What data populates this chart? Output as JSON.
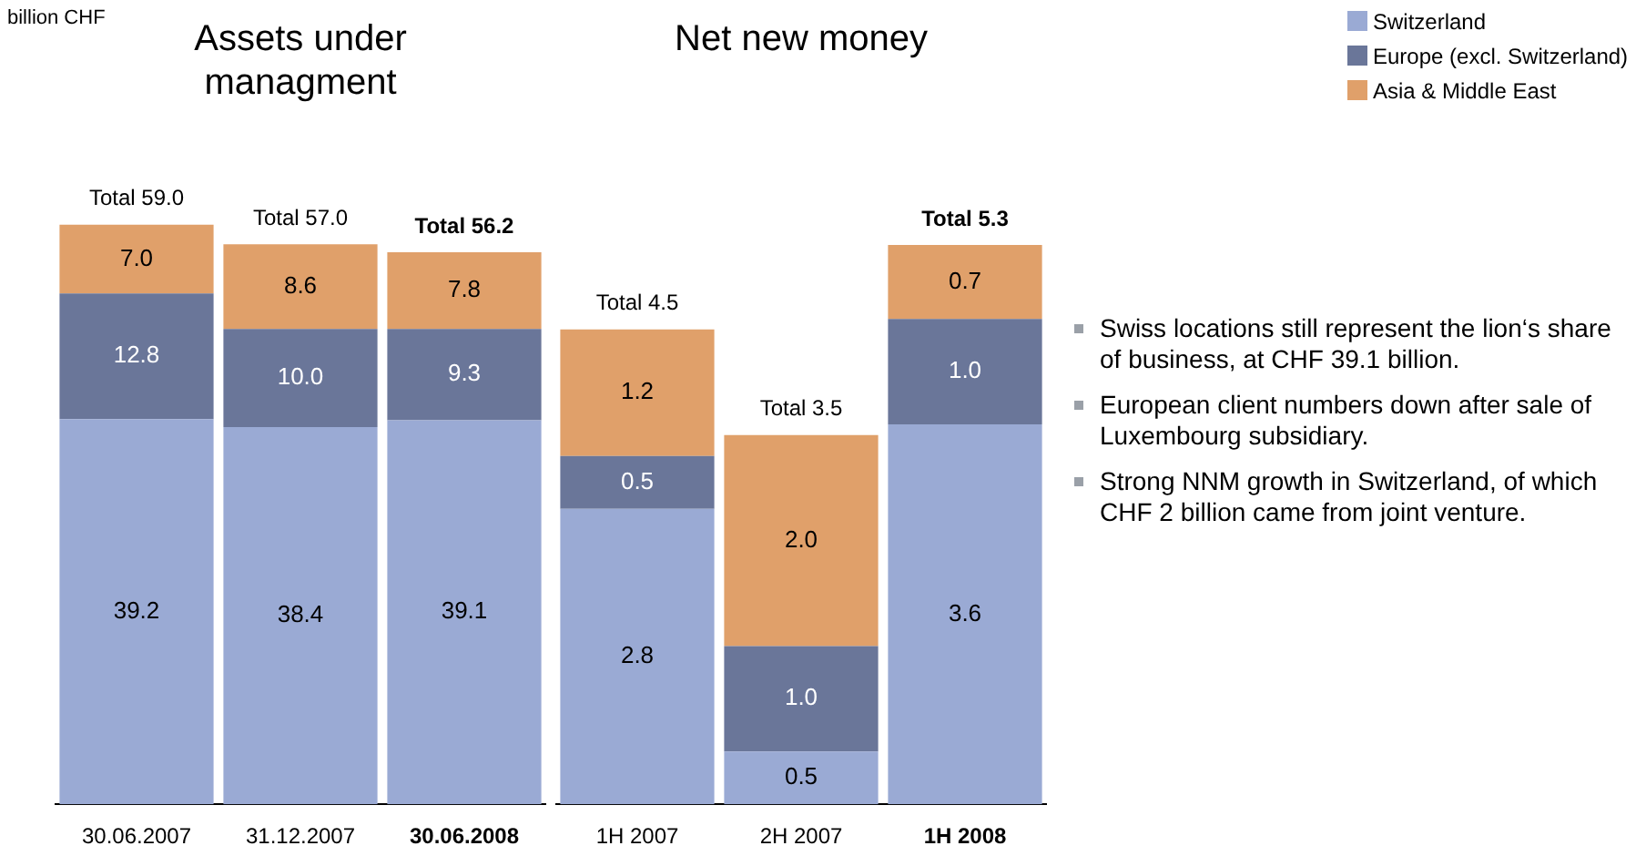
{
  "chart_data": [
    {
      "type": "bar",
      "title": "Assets under managment",
      "annotations": [
        "billion CHF"
      ],
      "stacked": true,
      "legend": "top right",
      "categories": [
        "30.06.2007",
        "31.12.2007",
        "30.06.2008"
      ],
      "series": [
        {
          "name": "Switzerland",
          "color": "#9aaad4",
          "values": [
            39.2,
            38.4,
            39.1
          ],
          "value_labels": [
            "39.2",
            "38.4",
            "39.1"
          ]
        },
        {
          "name": "Europe (excl. Switzerland)",
          "color": "#6a7699",
          "values": [
            12.8,
            10.0,
            9.3
          ],
          "value_labels": [
            "12.8",
            "10.0",
            "9.3"
          ]
        },
        {
          "name": "Asia & Middle East",
          "color": "#e0a06a",
          "values": [
            7.0,
            8.6,
            7.8
          ],
          "value_labels": [
            "7.0",
            "8.6",
            "7.8"
          ]
        }
      ],
      "totals": [
        "Total 59.0",
        "Total 57.0",
        "Total 56.2"
      ]
    },
    {
      "type": "bar",
      "title": "Net new money",
      "stacked": true,
      "categories": [
        "1H 2007",
        "2H 2007",
        "1H 2008"
      ],
      "series": [
        {
          "color": "#9aaad4",
          "values": [
            2.8,
            0.5,
            3.6
          ],
          "value_labels": [
            "2.8",
            "0.5",
            "3.6"
          ]
        },
        {
          "color": "#6a7699",
          "values": [
            0.5,
            1.0,
            1.0
          ],
          "value_labels": [
            "0.5",
            "1.0",
            "1.0"
          ]
        },
        {
          "color": "#e0a06a",
          "values": [
            1.2,
            2.0,
            0.7
          ],
          "value_labels": [
            "1.2",
            "2.0",
            "0.7"
          ]
        }
      ],
      "totals": [
        "Total 4.5",
        "Total 3.5",
        "Total 5.3"
      ]
    },
    {
      "type": "other",
      "annotations": [
        "Swiss locations still represent the lion‘s share of business, at CHF 39.1 billion.",
        "European client numbers down after sale of Luxembourg subsidiary.",
        "Strong NNM growth in Switzerland, of which CHF 2 billion came from joint venture."
      ]
    }
  ]
}
